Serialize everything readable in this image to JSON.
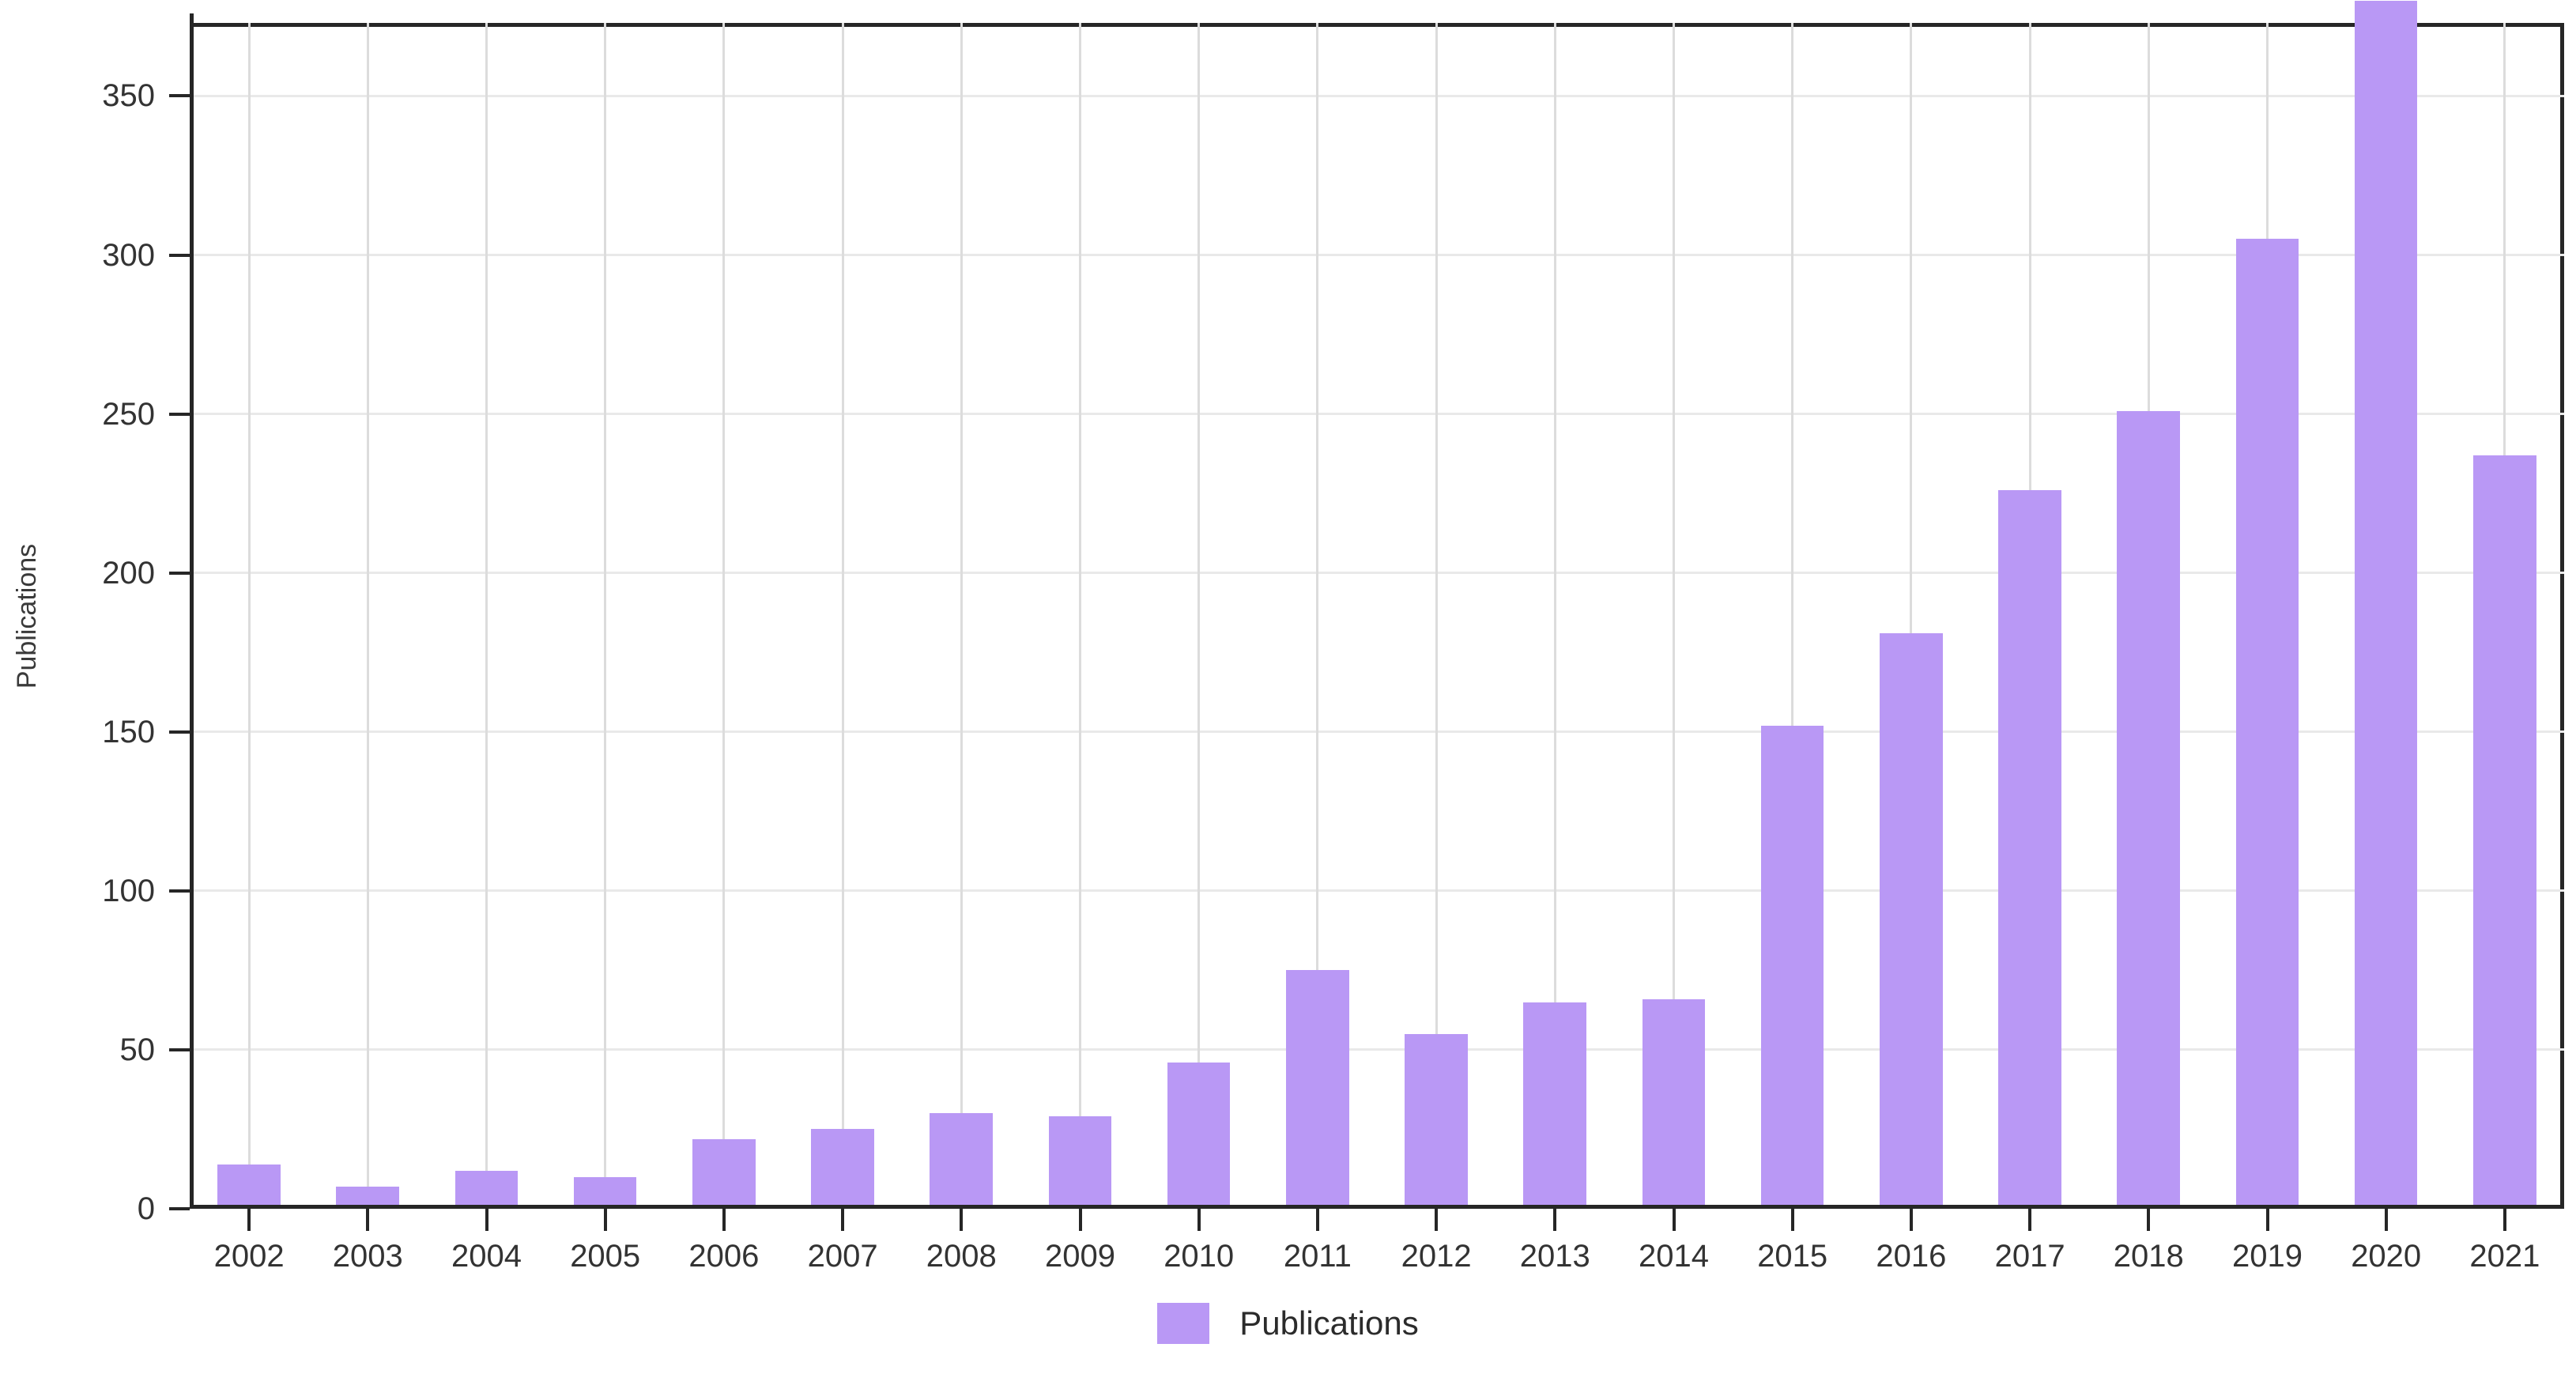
{
  "chart_data": {
    "type": "bar",
    "title": "",
    "xlabel": "",
    "ylabel": "Publications",
    "series_name": "Publications",
    "categories": [
      "2002",
      "2003",
      "2004",
      "2005",
      "2006",
      "2007",
      "2008",
      "2009",
      "2010",
      "2011",
      "2012",
      "2013",
      "2014",
      "2015",
      "2016",
      "2017",
      "2018",
      "2019",
      "2020",
      "2021"
    ],
    "values": [
      14,
      7,
      12,
      10,
      22,
      25,
      30,
      29,
      46,
      75,
      55,
      65,
      66,
      152,
      181,
      226,
      251,
      305,
      380,
      237
    ],
    "yticks": [
      0,
      50,
      100,
      150,
      200,
      250,
      300,
      350
    ],
    "ylim": [
      0,
      373
    ],
    "bar_width_fraction": 0.53,
    "grid": true,
    "legend_position": "bottom-center",
    "colors": {
      "bar": "#b998f5",
      "grid_horizontal": "#e9e9e9",
      "grid_vertical": "#dcdcdc",
      "axis": "#262626",
      "tick_text": "#333333",
      "ylabel_text": "#3a3a3a",
      "legend_text": "#2b2b2b",
      "background": "#ffffff"
    }
  },
  "legend": {
    "label": "Publications"
  }
}
